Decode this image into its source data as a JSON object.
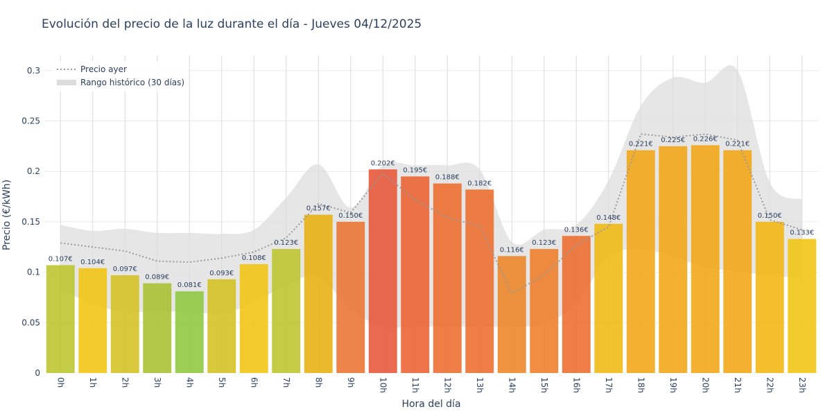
{
  "chart_data": {
    "type": "bar",
    "title": "Evolución del precio de la luz durante el día - Jueves 04/12/2025",
    "xlabel": "Hora del día",
    "ylabel": "Precio (€/kWh)",
    "ylim": [
      0,
      0.315
    ],
    "yticks": [
      0,
      0.05,
      0.1,
      0.15,
      0.2,
      0.25,
      0.3
    ],
    "ytick_labels": [
      "0",
      "0.05",
      "0.1",
      "0.15",
      "0.2",
      "0.25",
      "0.3"
    ],
    "categories": [
      "0h",
      "1h",
      "2h",
      "3h",
      "4h",
      "5h",
      "6h",
      "7h",
      "8h",
      "9h",
      "10h",
      "11h",
      "12h",
      "13h",
      "14h",
      "15h",
      "16h",
      "17h",
      "18h",
      "19h",
      "20h",
      "21h",
      "22h",
      "23h"
    ],
    "values": [
      0.107,
      0.104,
      0.097,
      0.089,
      0.081,
      0.093,
      0.108,
      0.123,
      0.157,
      0.15,
      0.202,
      0.195,
      0.188,
      0.182,
      0.116,
      0.123,
      0.136,
      0.148,
      0.221,
      0.225,
      0.226,
      0.221,
      0.15,
      0.133
    ],
    "value_labels": [
      "0.107€",
      "0.104€",
      "0.097€",
      "0.089€",
      "0.081€",
      "0.093€",
      "0.108€",
      "0.123€",
      "0.157€",
      "0.150€",
      "0.202€",
      "0.195€",
      "0.188€",
      "0.182€",
      "0.116€",
      "0.123€",
      "0.136€",
      "0.148€",
      "0.221€",
      "0.225€",
      "0.226€",
      "0.221€",
      "0.150€",
      "0.133€"
    ],
    "bar_colors": [
      "#bcc42a",
      "#f2c40f",
      "#d4c020",
      "#a8bf30",
      "#8ec63c",
      "#d4c020",
      "#f2c40f",
      "#bcc42a",
      "#e8b00f",
      "#ea7330",
      "#e65535",
      "#eb6030",
      "#ec6c2c",
      "#ec6c2c",
      "#ec8424",
      "#ee7d28",
      "#ec6c2c",
      "#f0b811",
      "#f2a515",
      "#f2a515",
      "#f2a515",
      "#f2a515",
      "#f2b50f",
      "#f2c40f"
    ],
    "series": [
      {
        "name": "Precio ayer",
        "type": "line",
        "style": "dotted",
        "color": "#999999",
        "values": [
          0.129,
          0.125,
          0.121,
          0.111,
          0.11,
          0.114,
          0.12,
          0.134,
          0.168,
          0.159,
          0.198,
          0.172,
          0.154,
          0.146,
          0.079,
          0.097,
          0.127,
          0.145,
          0.237,
          0.234,
          0.237,
          0.231,
          0.152,
          0.142
        ]
      },
      {
        "name": "Rango histórico (30 días)",
        "type": "band",
        "color": "#dcdcdc",
        "min": [
          0.084,
          0.068,
          0.061,
          0.061,
          0.061,
          0.059,
          0.07,
          0.087,
          0.096,
          0.063,
          0.046,
          0.046,
          0.046,
          0.046,
          0.046,
          0.049,
          0.069,
          0.115,
          0.123,
          0.115,
          0.105,
          0.101,
          0.097,
          0.094
        ],
        "max": [
          0.147,
          0.141,
          0.143,
          0.139,
          0.139,
          0.138,
          0.142,
          0.174,
          0.207,
          0.164,
          0.206,
          0.206,
          0.206,
          0.202,
          0.13,
          0.142,
          0.147,
          0.191,
          0.265,
          0.293,
          0.288,
          0.3,
          0.189,
          0.172
        ]
      }
    ],
    "legend": {
      "placement": "top-left",
      "items": [
        {
          "label": "Precio ayer",
          "symbol": "dotted-line"
        },
        {
          "label": "Rango histórico (30 días)",
          "symbol": "band"
        }
      ]
    },
    "grid": true
  }
}
